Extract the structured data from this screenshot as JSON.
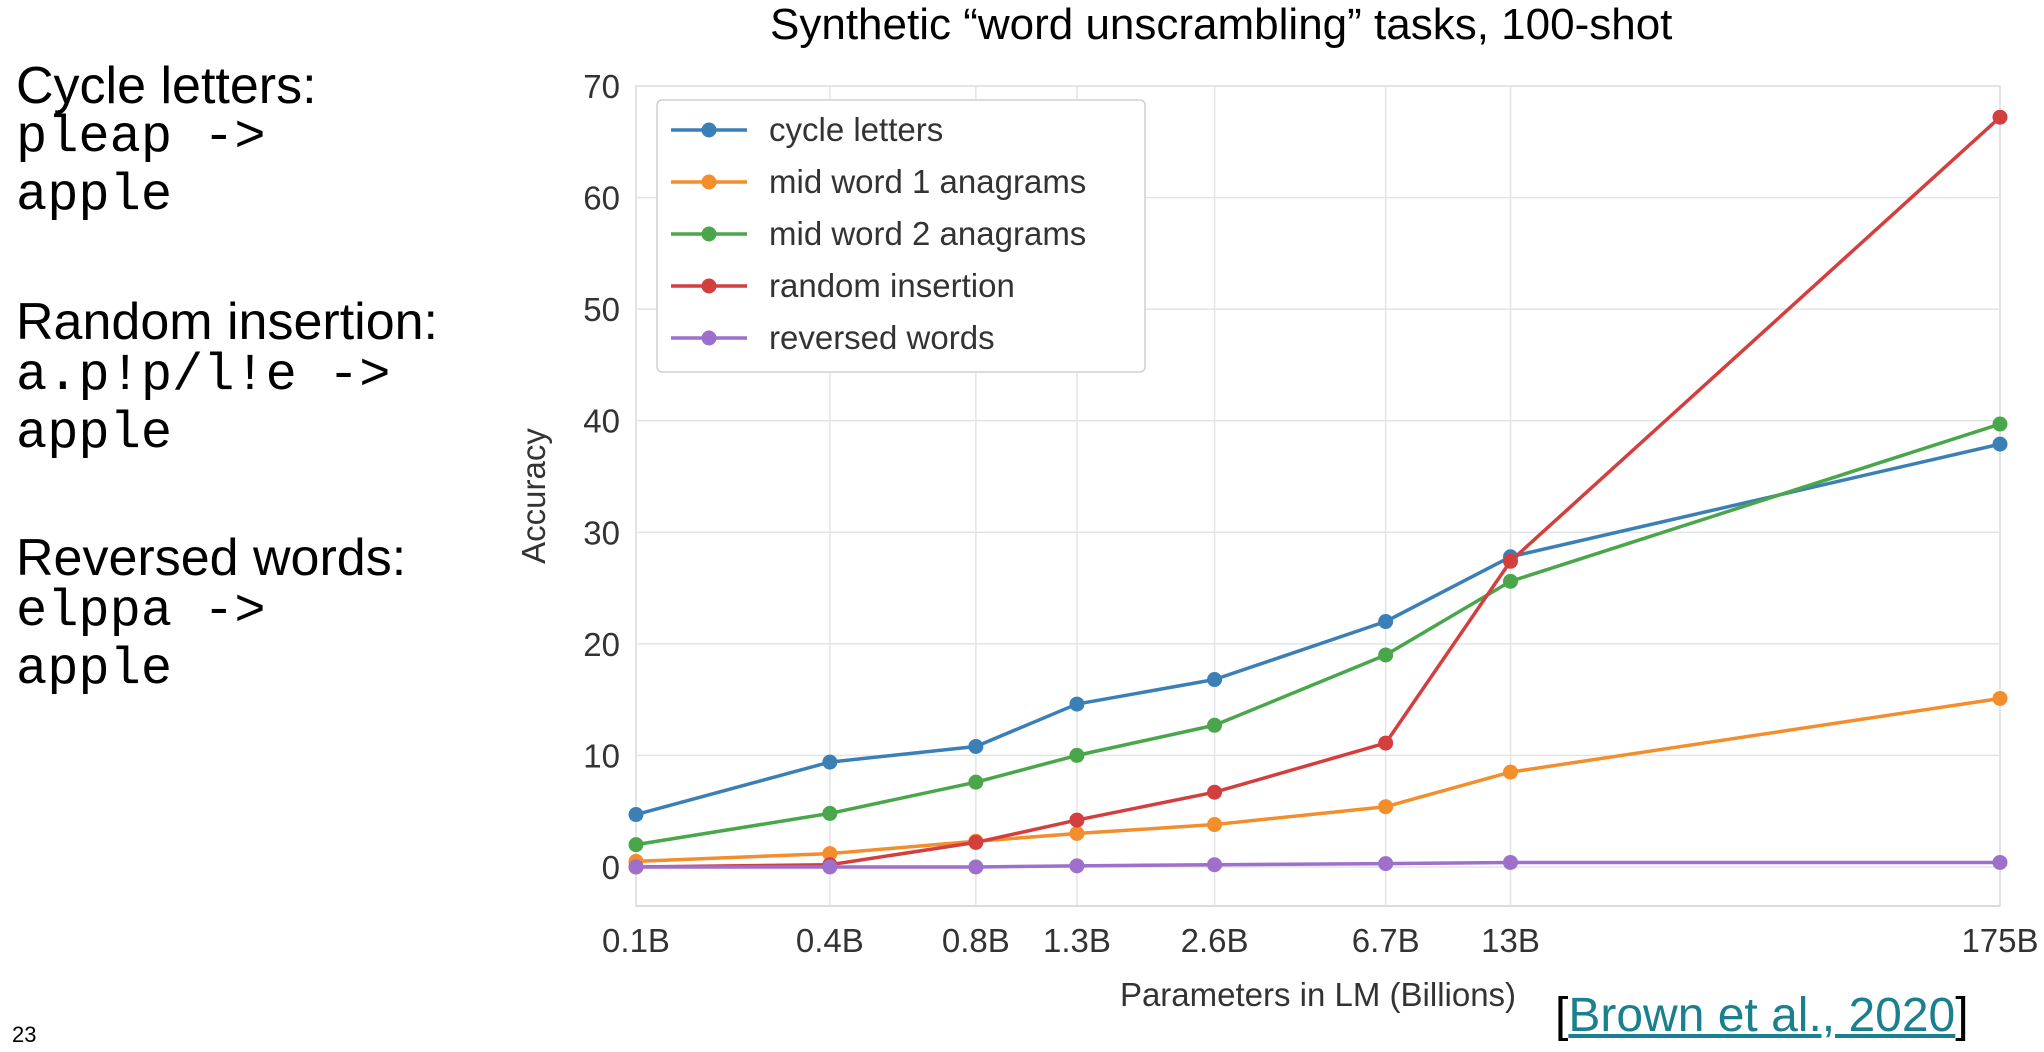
{
  "examples": [
    {
      "heading": "Cycle letters:",
      "line1": "pleap ->",
      "line2": "apple"
    },
    {
      "heading": "Random insertion:",
      "line1": "a.p!p/l!e ->",
      "line2": "apple"
    },
    {
      "heading": "Reversed words:",
      "line1": "elppa ->",
      "line2": "apple"
    }
  ],
  "citation": {
    "open": "[",
    "text": "Brown et al., 2020",
    "close": "]"
  },
  "slide_number": "23",
  "chart_data": {
    "type": "line",
    "title": "Synthetic “word unscrambling” tasks, 100-shot",
    "xlabel": "Parameters in LM (Billions)",
    "ylabel": "Accuracy",
    "x": [
      "0.1B",
      "0.4B",
      "0.8B",
      "1.3B",
      "2.6B",
      "6.7B",
      "13B",
      "175B"
    ],
    "x_values": [
      0.125,
      0.35,
      0.76,
      1.3,
      2.7,
      6.7,
      13,
      175
    ],
    "x_scale": "log",
    "ylim": [
      -3.5,
      70
    ],
    "yticks": [
      0,
      10,
      20,
      30,
      40,
      50,
      60,
      70
    ],
    "grid": true,
    "legend": "top-left",
    "series": [
      {
        "name": "cycle letters",
        "color": "#3b7fb7",
        "values": [
          4.7,
          9.4,
          10.8,
          14.6,
          16.8,
          22.0,
          27.8,
          37.9
        ]
      },
      {
        "name": "mid word 1 anagrams",
        "color": "#f28e2b",
        "values": [
          0.5,
          1.2,
          2.3,
          3.0,
          3.8,
          5.4,
          8.5,
          15.1
        ]
      },
      {
        "name": "mid word 2 anagrams",
        "color": "#4aa64a",
        "values": [
          2.0,
          4.8,
          7.6,
          10.0,
          12.7,
          19.0,
          25.6,
          39.7
        ]
      },
      {
        "name": "random insertion",
        "color": "#d33f3f",
        "values": [
          0.0,
          0.2,
          2.2,
          4.2,
          6.7,
          11.1,
          27.4,
          67.2
        ]
      },
      {
        "name": "reversed words",
        "color": "#9e6fcb",
        "values": [
          0.0,
          0.0,
          0.0,
          0.1,
          0.2,
          0.3,
          0.4,
          0.4
        ]
      }
    ]
  }
}
